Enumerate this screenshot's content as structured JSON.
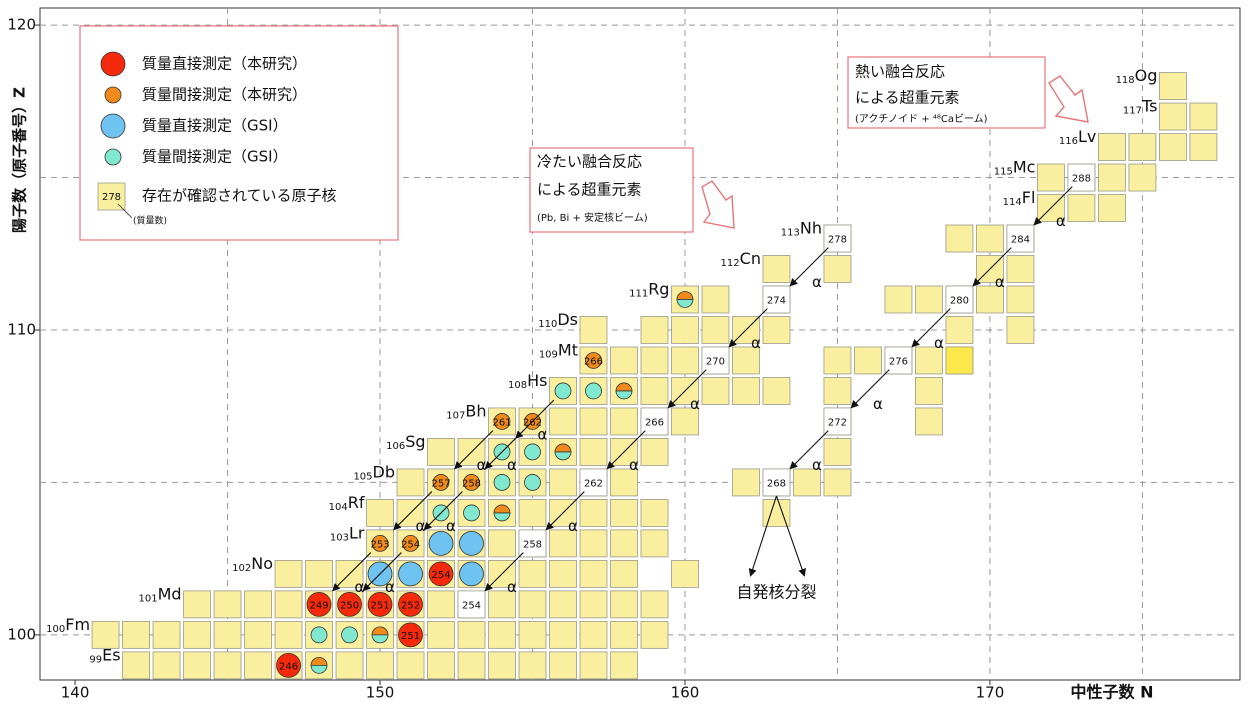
{
  "chart_data": {
    "type": "nuclide-chart",
    "xlabel": "中性子数 N",
    "ylabel": "陽子数（原子番号）Z",
    "xlim": [
      138.85,
      178.2
    ],
    "ylim": [
      98.52,
      120.56
    ],
    "xticks": [
      140,
      150,
      160,
      170
    ],
    "yticks": [
      100,
      110,
      120
    ],
    "xgrid": [
      145,
      150,
      155,
      160,
      165,
      170,
      175
    ],
    "ygrid": [
      100,
      105,
      110,
      115,
      120
    ],
    "grid": true,
    "cell_color": "#f9ef9e",
    "rows": [
      {
        "z": 99,
        "n": [
          [
            142,
            158
          ]
        ]
      },
      {
        "z": 100,
        "n": [
          [
            141,
            159
          ]
        ]
      },
      {
        "z": 101,
        "n": [
          [
            144,
            159
          ]
        ]
      },
      {
        "z": 102,
        "n": [
          [
            147,
            158
          ],
          [
            160,
            160
          ]
        ]
      },
      {
        "z": 103,
        "n": [
          [
            150,
            159
          ]
        ]
      },
      {
        "z": 104,
        "n": [
          [
            150,
            159
          ],
          [
            163,
            163
          ]
        ]
      },
      {
        "z": 105,
        "n": [
          [
            151,
            158
          ],
          [
            162,
            165
          ]
        ]
      },
      {
        "z": 106,
        "n": [
          [
            152,
            159
          ],
          [
            165,
            165
          ]
        ]
      },
      {
        "z": 107,
        "n": [
          [
            154,
            160
          ],
          [
            165,
            165
          ],
          [
            168,
            168
          ]
        ]
      },
      {
        "z": 108,
        "n": [
          [
            156,
            163
          ],
          [
            165,
            165
          ],
          [
            168,
            168
          ]
        ]
      },
      {
        "z": 109,
        "n": [
          [
            157,
            162
          ],
          [
            165,
            169
          ]
        ]
      },
      {
        "z": 110,
        "n": [
          [
            157,
            157
          ],
          [
            159,
            163
          ],
          [
            169,
            169
          ],
          [
            171,
            171
          ]
        ]
      },
      {
        "z": 111,
        "n": [
          [
            160,
            161
          ],
          [
            163,
            163
          ],
          [
            167,
            171
          ]
        ]
      },
      {
        "z": 112,
        "n": [
          [
            163,
            163
          ],
          [
            165,
            165
          ],
          [
            170,
            171
          ]
        ]
      },
      {
        "z": 113,
        "n": [
          [
            165,
            165
          ],
          [
            169,
            171
          ]
        ]
      },
      {
        "z": 114,
        "n": [
          [
            172,
            174
          ]
        ]
      },
      {
        "z": 115,
        "n": [
          [
            172,
            175
          ]
        ]
      },
      {
        "z": 116,
        "n": [
          [
            174,
            177
          ]
        ]
      },
      {
        "z": 117,
        "n": [
          [
            176,
            177
          ]
        ]
      },
      {
        "z": 118,
        "n": [
          [
            176,
            176
          ]
        ]
      }
    ],
    "highlight": [
      {
        "n": 169,
        "z": 109,
        "color": "#fbe84a"
      }
    ],
    "elements": [
      {
        "z": 99,
        "symbol": "Es"
      },
      {
        "z": 100,
        "symbol": "Fm"
      },
      {
        "z": 101,
        "symbol": "Md"
      },
      {
        "z": 102,
        "symbol": "No"
      },
      {
        "z": 103,
        "symbol": "Lr"
      },
      {
        "z": 104,
        "symbol": "Rf"
      },
      {
        "z": 105,
        "symbol": "Db"
      },
      {
        "z": 106,
        "symbol": "Sg"
      },
      {
        "z": 107,
        "symbol": "Bh"
      },
      {
        "z": 108,
        "symbol": "Hs"
      },
      {
        "z": 109,
        "symbol": "Mt"
      },
      {
        "z": 110,
        "symbol": "Ds"
      },
      {
        "z": 111,
        "symbol": "Rg"
      },
      {
        "z": 112,
        "symbol": "Cn"
      },
      {
        "z": 113,
        "symbol": "Nh"
      },
      {
        "z": 114,
        "symbol": "Fl"
      },
      {
        "z": 115,
        "symbol": "Mc"
      },
      {
        "z": 116,
        "symbol": "Lv"
      },
      {
        "z": 117,
        "symbol": "Ts"
      },
      {
        "z": 118,
        "symbol": "Og"
      }
    ],
    "mass_boxes": [
      {
        "n": 153,
        "z": 101,
        "mass": 254
      },
      {
        "n": 155,
        "z": 103,
        "mass": 258
      },
      {
        "n": 157,
        "z": 105,
        "mass": 262
      },
      {
        "n": 159,
        "z": 107,
        "mass": 266
      },
      {
        "n": 161,
        "z": 109,
        "mass": 270
      },
      {
        "n": 163,
        "z": 111,
        "mass": 274
      },
      {
        "n": 165,
        "z": 113,
        "mass": 278
      },
      {
        "n": 163,
        "z": 105,
        "mass": 268
      },
      {
        "n": 165,
        "z": 107,
        "mass": 272
      },
      {
        "n": 167,
        "z": 109,
        "mass": 276
      },
      {
        "n": 169,
        "z": 111,
        "mass": 280
      },
      {
        "n": 171,
        "z": 113,
        "mass": 284
      },
      {
        "n": 173,
        "z": 115,
        "mass": 288
      }
    ],
    "legend": [
      {
        "name": "質量直接測定（本研究）",
        "color": "#f52a0c",
        "size": "large"
      },
      {
        "name": "質量間接測定（本研究）",
        "color": "#f08a1c",
        "size": "small"
      },
      {
        "name": "質量直接測定（GSI）",
        "color": "#6ec3f0",
        "size": "large"
      },
      {
        "name": "質量間接測定（GSI）",
        "color": "#7fe8cf",
        "size": "small"
      }
    ],
    "legend_box": {
      "name": "存在が確認されている原子核",
      "example": 278,
      "note": "(質量数)"
    },
    "markers": [
      {
        "n": 147,
        "z": 99,
        "kind": [
          0
        ],
        "mass": 246
      },
      {
        "n": 148,
        "z": 99,
        "kind": [
          1,
          3
        ]
      },
      {
        "n": 148,
        "z": 100,
        "kind": [
          3
        ]
      },
      {
        "n": 149,
        "z": 100,
        "kind": [
          3
        ]
      },
      {
        "n": 150,
        "z": 100,
        "kind": [
          1,
          3
        ]
      },
      {
        "n": 151,
        "z": 100,
        "kind": [
          0
        ],
        "mass": 251
      },
      {
        "n": 148,
        "z": 101,
        "kind": [
          0
        ],
        "mass": 249
      },
      {
        "n": 149,
        "z": 101,
        "kind": [
          0
        ],
        "mass": 250
      },
      {
        "n": 150,
        "z": 101,
        "kind": [
          0
        ],
        "mass": 251
      },
      {
        "n": 151,
        "z": 101,
        "kind": [
          0
        ],
        "mass": 252
      },
      {
        "n": 150,
        "z": 102,
        "kind": [
          2
        ]
      },
      {
        "n": 151,
        "z": 102,
        "kind": [
          2
        ]
      },
      {
        "n": 153,
        "z": 102,
        "kind": [
          2
        ]
      },
      {
        "n": 152,
        "z": 102,
        "kind": [
          0
        ],
        "mass": 254
      },
      {
        "n": 150,
        "z": 103,
        "kind": [
          1
        ],
        "mass": 253
      },
      {
        "n": 151,
        "z": 103,
        "kind": [
          1
        ],
        "mass": 254
      },
      {
        "n": 152,
        "z": 103,
        "kind": [
          2
        ]
      },
      {
        "n": 153,
        "z": 103,
        "kind": [
          2
        ]
      },
      {
        "n": 152,
        "z": 104,
        "kind": [
          3
        ]
      },
      {
        "n": 153,
        "z": 104,
        "kind": [
          3
        ]
      },
      {
        "n": 154,
        "z": 104,
        "kind": [
          1,
          3
        ]
      },
      {
        "n": 152,
        "z": 105,
        "kind": [
          1
        ],
        "mass": 257
      },
      {
        "n": 153,
        "z": 105,
        "kind": [
          1
        ],
        "mass": 258
      },
      {
        "n": 154,
        "z": 105,
        "kind": [
          3
        ]
      },
      {
        "n": 155,
        "z": 105,
        "kind": [
          3
        ]
      },
      {
        "n": 154,
        "z": 106,
        "kind": [
          3
        ]
      },
      {
        "n": 155,
        "z": 106,
        "kind": [
          3
        ]
      },
      {
        "n": 156,
        "z": 106,
        "kind": [
          1,
          3
        ]
      },
      {
        "n": 154,
        "z": 107,
        "kind": [
          1
        ],
        "mass": 261
      },
      {
        "n": 155,
        "z": 107,
        "kind": [
          1
        ],
        "mass": 262
      },
      {
        "n": 156,
        "z": 108,
        "kind": [
          3
        ]
      },
      {
        "n": 157,
        "z": 108,
        "kind": [
          3
        ]
      },
      {
        "n": 158,
        "z": 108,
        "kind": [
          1,
          3
        ]
      },
      {
        "n": 157,
        "z": 109,
        "kind": [
          1
        ],
        "mass": 266
      },
      {
        "n": 160,
        "z": 111,
        "kind": [
          1,
          3
        ]
      }
    ],
    "alpha": "α",
    "alpha_decays": [
      [
        173,
        115
      ],
      [
        171,
        113
      ],
      [
        169,
        111
      ],
      [
        167,
        109
      ],
      [
        165,
        107
      ],
      [
        165,
        113
      ],
      [
        163,
        111
      ],
      [
        161,
        109
      ],
      [
        159,
        107
      ],
      [
        157,
        105
      ],
      [
        155,
        103
      ],
      [
        156,
        108
      ],
      [
        154,
        107
      ],
      [
        155,
        107
      ],
      [
        152,
        105
      ],
      [
        153,
        105
      ],
      [
        150,
        103
      ],
      [
        151,
        103
      ]
    ],
    "fission": {
      "label": "自発核分裂",
      "n": 163,
      "z": 105
    }
  },
  "annotations": {
    "cold": [
      "冷たい融合反応",
      "による超重元素",
      "(Pb, Bi + 安定核ビーム)"
    ],
    "hot": [
      "熱い融合反応",
      "による超重元素",
      "(アクチノイド + ⁴⁸Caビーム)"
    ]
  }
}
